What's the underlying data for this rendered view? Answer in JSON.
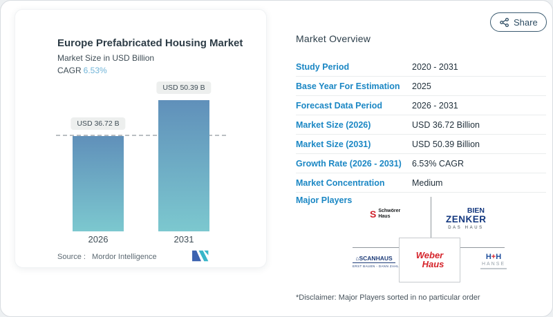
{
  "chart_card": {
    "title": "Europe Prefabricated Housing Market",
    "subtitle": "Market Size in USD Billion",
    "cagr_label": "CAGR",
    "cagr_value": "6.53%",
    "source_label": "Source :",
    "source_value": "Mordor Intelligence"
  },
  "chart_data": {
    "type": "bar",
    "categories": [
      "2026",
      "2031"
    ],
    "values": [
      36.72,
      50.39
    ],
    "value_labels": [
      "USD 36.72 B",
      "USD 50.39 B"
    ],
    "title": "Europe Prefabricated Housing Market",
    "ylabel": "Market Size in USD Billion",
    "cagr_percent": "6.53%",
    "reference_line": {
      "style": "dashed",
      "at_value": 36.72
    },
    "ylim": [
      0,
      50.39
    ],
    "grid": false,
    "legend": "none",
    "bar_color_top": "#6090ba",
    "bar_color_bottom": "#7cc8cf"
  },
  "share": {
    "label": "Share"
  },
  "overview": {
    "heading": "Market Overview",
    "rows": [
      {
        "label": "Study Period",
        "value": "2020 - 2031"
      },
      {
        "label": "Base Year For Estimation",
        "value": "2025"
      },
      {
        "label": "Forecast Data Period",
        "value": "2026 - 2031"
      },
      {
        "label": "Market Size (2026)",
        "value": "USD 36.72 Billion"
      },
      {
        "label": "Market Size (2031)",
        "value": "USD 50.39 Billion"
      },
      {
        "label": "Growth Rate (2026 - 2031)",
        "value": "6.53% CAGR"
      },
      {
        "label": "Market Concentration",
        "value": "Medium"
      }
    ],
    "major_players_label": "Major Players",
    "players": {
      "schwoerer": {
        "mark": "S",
        "line1": "Schwörer",
        "line2": "Haus"
      },
      "bienzenker": {
        "line1": "BIEN",
        "line2": "ZENKER",
        "line3": "DAS HAUS"
      },
      "scanhaus": {
        "house_icon": "⌂",
        "name": "SCANHAUS",
        "tagline": "ERST BAUEN - DANN ZAHLEN"
      },
      "weberhaus": {
        "line1": "Weber",
        "line2": "Haus"
      },
      "hh": {
        "h_left": "H",
        "plus": "+",
        "h_right": "H",
        "sub": "HANSE"
      }
    },
    "disclaimer": "*Disclaimer: Major Players sorted in no particular order"
  },
  "colors": {
    "accent_blue": "#1b87c4",
    "cagr_value_blue": "#70b4d8",
    "bar_gradient_top": "#6090ba",
    "bar_gradient_bottom": "#7cc8cf",
    "share_outline": "#3a5a70",
    "mordor_logo_blue": "#3c63b0",
    "mordor_logo_teal": "#38b6c9"
  }
}
